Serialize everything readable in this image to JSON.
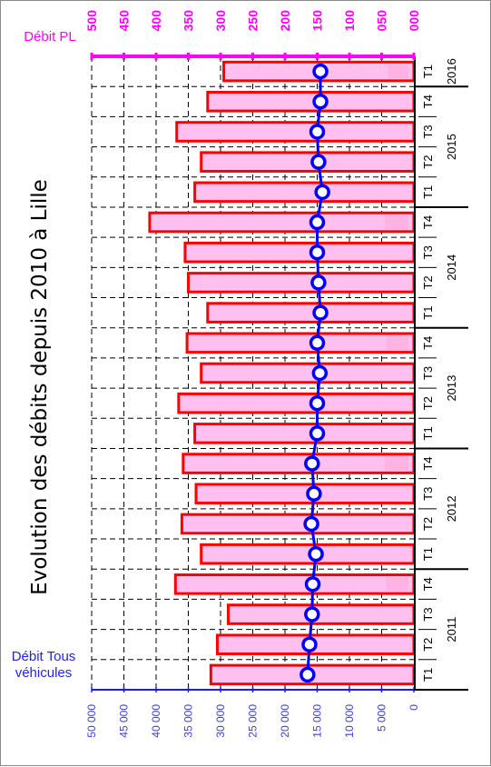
{
  "chart_data": {
    "type": "bar",
    "title": "Evolution des débits depuis 2010 à Lille",
    "left_axis_label": "Débit Tous véhicules",
    "left_axis_label_lines": [
      "Débit Tous",
      "véhicules"
    ],
    "right_axis_label": "Débit PL",
    "left_ticks": [
      "0",
      "5 000",
      "10 000",
      "15 000",
      "20 000",
      "25 000",
      "30 000",
      "35 000",
      "40 000",
      "45 000",
      "50 000"
    ],
    "right_ticks": [
      "000",
      "050",
      "100",
      "150",
      "200",
      "250",
      "300",
      "350",
      "400",
      "450",
      "500"
    ],
    "left_range": [
      0,
      50000
    ],
    "right_range": [
      0,
      500
    ],
    "quarter_labels": [
      "T1",
      "T2",
      "T3",
      "T4",
      "T1",
      "T2",
      "T3",
      "T4",
      "T1",
      "T2",
      "T3",
      "T4",
      "T1",
      "T2",
      "T3",
      "T4",
      "T1",
      "T2",
      "T3",
      "T4",
      "T1"
    ],
    "years": [
      {
        "label": "2011",
        "start": 0,
        "count": 4
      },
      {
        "label": "2012",
        "start": 4,
        "count": 4
      },
      {
        "label": "2013",
        "start": 8,
        "count": 4
      },
      {
        "label": "2014",
        "start": 12,
        "count": 4
      },
      {
        "label": "2015",
        "start": 16,
        "count": 4
      },
      {
        "label": "2016",
        "start": 20,
        "count": 1
      }
    ],
    "series": [
      {
        "name": "Débit Tous véhicules",
        "kind": "bar",
        "axis": "left",
        "color": "#ff0000",
        "values": [
          31500,
          30500,
          28800,
          37000,
          33000,
          36000,
          33800,
          35800,
          34000,
          36500,
          33000,
          35200,
          32000,
          35000,
          35500,
          41000,
          34000,
          33000,
          36800,
          32000,
          29500
        ]
      },
      {
        "name": "Débit PL",
        "kind": "line",
        "axis": "right",
        "color": "#0000ff",
        "values": [
          165,
          162,
          158,
          157,
          152,
          159,
          155,
          158,
          150,
          150,
          146,
          150,
          145,
          148,
          150,
          150,
          142,
          148,
          150,
          145,
          145
        ]
      }
    ],
    "secondary_pink": [
      0,
      0,
      0,
      43,
      0,
      0,
      0,
      45,
      0,
      0,
      0,
      43,
      0,
      0,
      0,
      45,
      0,
      0,
      0,
      0,
      40
    ],
    "grid": true
  }
}
